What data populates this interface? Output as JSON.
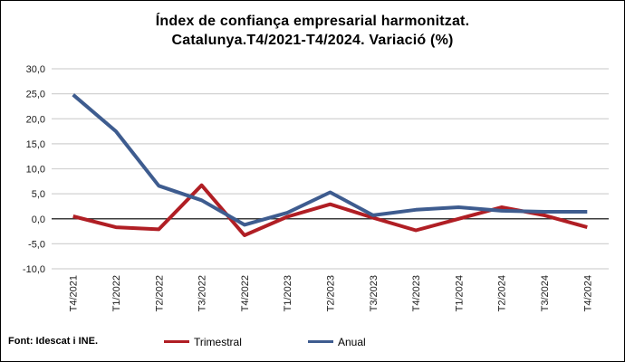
{
  "title": {
    "line1": "Índex de confiança empresarial harmonitzat.",
    "line2": "Catalunya.T4/2021-T4/2024. Variació (%)"
  },
  "source": "Font: Idescat i INE.",
  "colors": {
    "trimestral": "#B01E24",
    "anual": "#3E5C8F",
    "grid": "#D2D2D2",
    "zero_axis": "#3C3C3C",
    "text": "#1A1A1A"
  },
  "chart_data": {
    "type": "line",
    "title": "Índex de confiança empresarial harmonitzat. Catalunya.T4/2021-T4/2024. Variació (%)",
    "xlabel": "",
    "ylabel": "",
    "categories": [
      "T4/2021",
      "T1/2022",
      "T2/2022",
      "T3/2022",
      "T4/2022",
      "T1/2023",
      "T2/2023",
      "T3/2023",
      "T4/2023",
      "T1/2024",
      "T2/2024",
      "T3/2024",
      "T4/2024"
    ],
    "series": [
      {
        "name": "Trimestral",
        "color": "#B01E24",
        "values": [
          0.5,
          -1.7,
          -2.1,
          6.7,
          -3.3,
          0.4,
          2.9,
          0.2,
          -2.3,
          0.0,
          2.3,
          0.7,
          -1.7
        ]
      },
      {
        "name": "Anual",
        "color": "#3E5C8F",
        "values": [
          24.8,
          17.5,
          6.6,
          3.7,
          -1.2,
          1.2,
          5.3,
          0.7,
          1.8,
          2.3,
          1.6,
          1.4,
          1.4
        ]
      }
    ],
    "ylim": [
      -10,
      30
    ],
    "ytick_step": 5,
    "ytick_labels": [
      "30,0",
      "25,0",
      "20,0",
      "15,0",
      "10,0",
      "5,0",
      "0,0",
      "-5,0",
      "-10,0"
    ],
    "grid": true,
    "legend_position": "bottom"
  }
}
